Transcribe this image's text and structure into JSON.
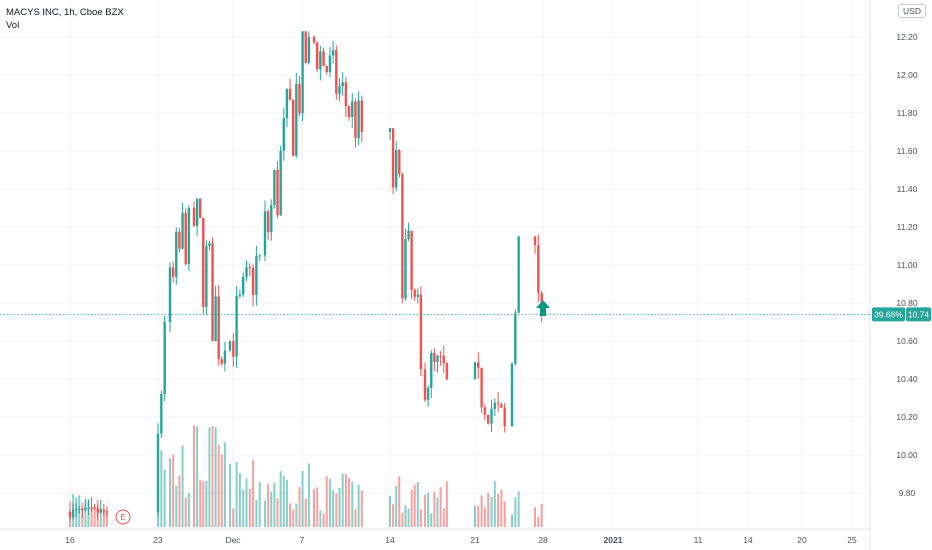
{
  "header": {
    "title": "MACYS INC, 1h, Cboe BZX",
    "indicator": "Vol",
    "currency": "USD"
  },
  "price_label": {
    "percent": "39.66%",
    "price": "10.74"
  },
  "earnings_marker": "E",
  "colors": {
    "up": "#26a69a",
    "down": "#ef5350",
    "grid": "#f0f3fa",
    "text": "#50535e",
    "last_price": "#26a69a",
    "arrow": "#089981"
  },
  "chart_data": {
    "type": "candlestick",
    "title": "MACYS INC, 1h, Cboe BZX",
    "x_ticks": [
      "16",
      "23",
      "Dec",
      "7",
      "14",
      "21",
      "28",
      "2021",
      "11",
      "14",
      "20",
      "25"
    ],
    "y_ticks": [
      "12.20",
      "12.00",
      "11.80",
      "11.60",
      "11.40",
      "11.20",
      "11.00",
      "10.80",
      "10.60",
      "10.40",
      "10.20",
      "10.00",
      "9.80"
    ],
    "ylim": [
      9.6,
      12.3
    ],
    "last_price": 10.74,
    "last_price_change_pct": 39.66,
    "segments": [
      {
        "start": "Nov 16",
        "end": "Nov 20",
        "open": 9.7,
        "close": 9.7,
        "high": 9.78,
        "low": 9.66,
        "volume_level": 0.3
      },
      {
        "start": "Nov 23",
        "end": "Nov 23",
        "open": 9.7,
        "close": 10.7,
        "high": 10.75,
        "low": 9.68,
        "volume_level": 1.0
      },
      {
        "start": "Nov 24",
        "end": "Nov 25",
        "open": 10.7,
        "close": 11.3,
        "high": 11.4,
        "low": 10.3,
        "volume_level": 0.7
      },
      {
        "start": "Nov 26",
        "end": "Nov 30",
        "open": 11.3,
        "close": 10.55,
        "high": 11.35,
        "low": 10.05,
        "volume_level": 0.8
      },
      {
        "start": "Dec 1",
        "end": "Dec 3",
        "open": 10.55,
        "close": 11.05,
        "high": 11.1,
        "low": 10.3,
        "volume_level": 0.5
      },
      {
        "start": "Dec 4",
        "end": "Dec 7",
        "open": 11.05,
        "close": 12.2,
        "high": 12.23,
        "low": 10.95,
        "volume_level": 0.5
      },
      {
        "start": "Dec 8",
        "end": "Dec 11",
        "open": 12.2,
        "close": 11.7,
        "high": 12.22,
        "low": 11.5,
        "volume_level": 0.4
      },
      {
        "start": "Dec 14",
        "end": "Dec 16",
        "open": 11.7,
        "close": 10.45,
        "high": 11.72,
        "low": 10.35,
        "volume_level": 0.4
      },
      {
        "start": "Dec 17",
        "end": "Dec 18",
        "open": 10.45,
        "close": 10.4,
        "high": 10.85,
        "low": 10.1,
        "volume_level": 0.35
      },
      {
        "start": "Dec 21",
        "end": "Dec 23",
        "open": 10.4,
        "close": 10.15,
        "high": 10.6,
        "low": 10.05,
        "volume_level": 0.35
      },
      {
        "start": "Dec 24",
        "end": "Dec 24",
        "open": 10.15,
        "close": 11.15,
        "high": 11.2,
        "low": 10.15,
        "volume_level": 0.3
      },
      {
        "start": "Dec 28",
        "end": "Dec 28",
        "open": 11.15,
        "close": 10.74,
        "high": 11.2,
        "low": 10.65,
        "volume_level": 0.3
      }
    ],
    "grid": true,
    "volume_pane": true
  }
}
